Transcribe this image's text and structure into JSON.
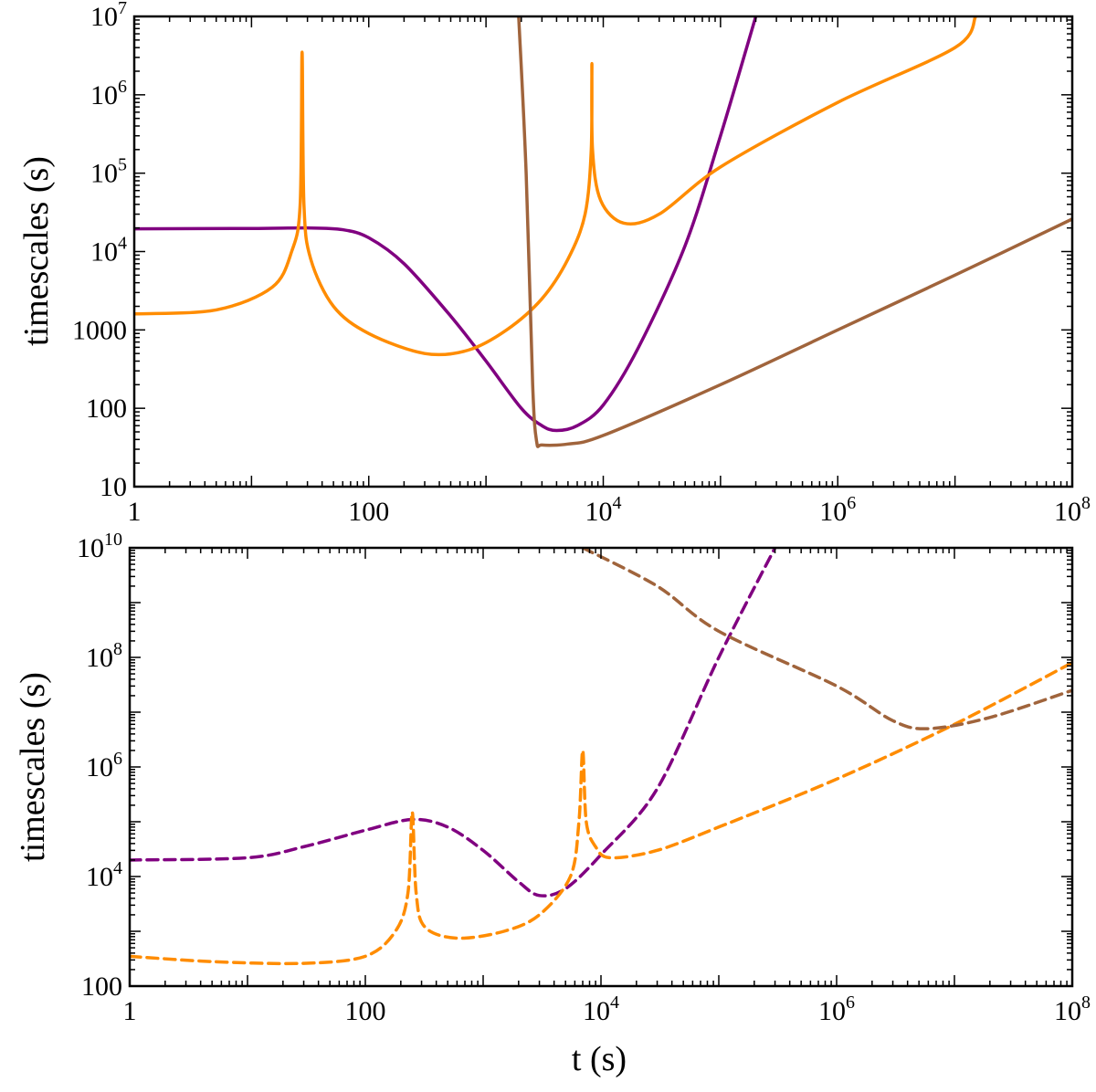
{
  "chart_data": [
    {
      "type": "line",
      "panel": "top",
      "xscale": "log",
      "yscale": "log",
      "xlim": [
        1,
        100000000
      ],
      "ylim": [
        10,
        10000000
      ],
      "ylabel": "timescales (s)",
      "xlabel": "",
      "x_ticks": [
        {
          "value": 1,
          "base": "1",
          "exp": ""
        },
        {
          "value": 100,
          "base": "100",
          "exp": ""
        },
        {
          "value": 10000,
          "base": "10",
          "exp": "4"
        },
        {
          "value": 1000000,
          "base": "10",
          "exp": "6"
        },
        {
          "value": 100000000,
          "base": "10",
          "exp": "8"
        }
      ],
      "y_ticks": [
        {
          "value": 10,
          "base": "10",
          "exp": ""
        },
        {
          "value": 100,
          "base": "100",
          "exp": ""
        },
        {
          "value": 1000,
          "base": "1000",
          "exp": ""
        },
        {
          "value": 10000,
          "base": "10",
          "exp": "4"
        },
        {
          "value": 100000,
          "base": "10",
          "exp": "5"
        },
        {
          "value": 1000000,
          "base": "10",
          "exp": "6"
        },
        {
          "value": 10000000,
          "base": "10",
          "exp": "7"
        }
      ],
      "series": [
        {
          "name": "purple",
          "color": "#800080",
          "dash": "solid",
          "points": [
            [
              1,
              19500
            ],
            [
              10,
              19700
            ],
            [
              30,
              20000
            ],
            [
              60,
              19000
            ],
            [
              100,
              15000
            ],
            [
              200,
              7000
            ],
            [
              500,
              1500
            ],
            [
              1000,
              400
            ],
            [
              2000,
              100
            ],
            [
              3000,
              60
            ],
            [
              4000,
              52
            ],
            [
              6000,
              60
            ],
            [
              10000,
              110
            ],
            [
              20000,
              600
            ],
            [
              50000,
              12000
            ],
            [
              100000,
              300000
            ],
            [
              200000,
              10000000
            ]
          ]
        },
        {
          "name": "orange",
          "color": "#FF8C00",
          "dash": "solid",
          "points": [
            [
              1,
              1600
            ],
            [
              5,
              1800
            ],
            [
              15,
              3500
            ],
            [
              22,
              10000
            ],
            [
              26,
              40000
            ],
            [
              27,
              3500000
            ],
            [
              28,
              40000
            ],
            [
              32,
              8000
            ],
            [
              50,
              2000
            ],
            [
              100,
              900
            ],
            [
              300,
              500
            ],
            [
              700,
              550
            ],
            [
              1500,
              1000
            ],
            [
              3000,
              2500
            ],
            [
              5000,
              8000
            ],
            [
              7000,
              30000
            ],
            [
              7900,
              200000
            ],
            [
              8000,
              2500000
            ],
            [
              8100,
              200000
            ],
            [
              9500,
              45000
            ],
            [
              15000,
              23000
            ],
            [
              30000,
              30000
            ],
            [
              100000,
              120000
            ],
            [
              1000000,
              800000
            ],
            [
              10000000,
              4000000
            ],
            [
              15000000,
              10000000
            ]
          ]
        },
        {
          "name": "brown",
          "color": "#A0643C",
          "dash": "solid",
          "points": [
            [
              1900,
              10000000
            ],
            [
              2200,
              100000
            ],
            [
              2500,
              200
            ],
            [
              2700,
              38
            ],
            [
              3000,
              34
            ],
            [
              5000,
              35
            ],
            [
              10000,
              45
            ],
            [
              100000,
              200
            ],
            [
              1000000,
              1000
            ],
            [
              10000000,
              5000
            ],
            [
              100000000,
              26000
            ]
          ]
        }
      ]
    },
    {
      "type": "line",
      "panel": "bottom",
      "xscale": "log",
      "yscale": "log",
      "xlim": [
        1,
        100000000
      ],
      "ylim": [
        100,
        10000000000
      ],
      "ylabel": "timescales (s)",
      "xlabel": "t (s)",
      "x_ticks": [
        {
          "value": 1,
          "base": "1",
          "exp": ""
        },
        {
          "value": 100,
          "base": "100",
          "exp": ""
        },
        {
          "value": 10000,
          "base": "10",
          "exp": "4"
        },
        {
          "value": 1000000,
          "base": "10",
          "exp": "6"
        },
        {
          "value": 100000000,
          "base": "10",
          "exp": "8"
        }
      ],
      "y_ticks": [
        {
          "value": 100,
          "base": "100",
          "exp": ""
        },
        {
          "value": 10000,
          "base": "10",
          "exp": "4"
        },
        {
          "value": 1000000,
          "base": "10",
          "exp": "6"
        },
        {
          "value": 100000000,
          "base": "10",
          "exp": "8"
        },
        {
          "value": 10000000000,
          "base": "10",
          "exp": "10"
        }
      ],
      "series": [
        {
          "name": "purple",
          "color": "#800080",
          "dash": "dashed",
          "points": [
            [
              1,
              20000
            ],
            [
              10,
              22000
            ],
            [
              30,
              35000
            ],
            [
              100,
              70000
            ],
            [
              250,
              110000
            ],
            [
              500,
              80000
            ],
            [
              1000,
              30000
            ],
            [
              2000,
              8000
            ],
            [
              3000,
              4500
            ],
            [
              5000,
              6000
            ],
            [
              10000,
              25000
            ],
            [
              30000,
              400000
            ],
            [
              100000,
              100000000
            ],
            [
              300000,
              10000000000
            ]
          ]
        },
        {
          "name": "orange",
          "color": "#FF8C00",
          "dash": "dashed",
          "points": [
            [
              1,
              350
            ],
            [
              5,
              280
            ],
            [
              30,
              260
            ],
            [
              100,
              350
            ],
            [
              180,
              1000
            ],
            [
              230,
              5000
            ],
            [
              250,
              150000
            ],
            [
              270,
              5000
            ],
            [
              320,
              1200
            ],
            [
              600,
              750
            ],
            [
              1500,
              1000
            ],
            [
              3000,
              2000
            ],
            [
              5500,
              10000
            ],
            [
              6500,
              100000
            ],
            [
              7000,
              2000000
            ],
            [
              7500,
              100000
            ],
            [
              9000,
              35000
            ],
            [
              12000,
              22000
            ],
            [
              30000,
              30000
            ],
            [
              100000,
              80000
            ],
            [
              1000000,
              600000
            ],
            [
              10000000,
              6000000
            ],
            [
              100000000,
              80000000
            ]
          ]
        },
        {
          "name": "brown",
          "color": "#A0643C",
          "dash": "dashed",
          "points": [
            [
              7000,
              10000000000
            ],
            [
              30000,
              2000000000
            ],
            [
              100000,
              300000000
            ],
            [
              1000000,
              30000000
            ],
            [
              3000000,
              7000000
            ],
            [
              6000000,
              5000000
            ],
            [
              20000000,
              8000000
            ],
            [
              100000000,
              25000000
            ]
          ]
        }
      ]
    }
  ]
}
